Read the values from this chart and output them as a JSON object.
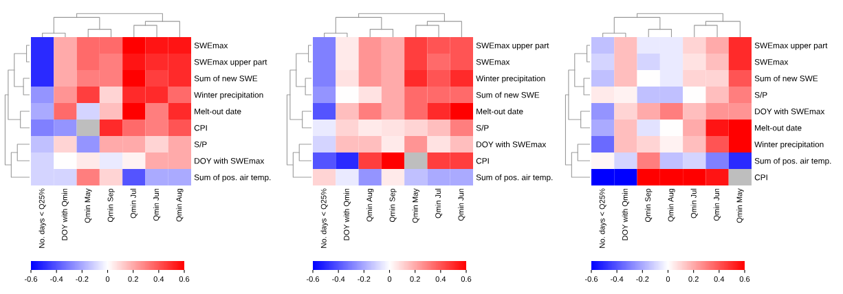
{
  "chart_data": [
    {
      "type": "heatmap",
      "categories": [
        "No. days < Q25%",
        "DOY with Qmin",
        "Qmin May",
        "Qmin Sep",
        "Qmin Jul",
        "Qmin Jun",
        "Qmin Aug"
      ],
      "y_categories": [
        "SWEmax",
        "SWEmax upper part",
        "Sum of new SWE",
        "Winter precipitation",
        "Melt-out date",
        "CPI",
        "S/P",
        "DOY with SWEmax",
        "Sum of pos. air temp."
      ],
      "cells": [
        [
          -0.5,
          0.2,
          0.35,
          0.35,
          0.6,
          0.55,
          0.55
        ],
        [
          -0.5,
          0.2,
          0.35,
          0.3,
          0.55,
          0.5,
          0.5
        ],
        [
          -0.5,
          0.2,
          0.3,
          0.3,
          0.6,
          0.45,
          0.5
        ],
        [
          -0.25,
          0.25,
          0.45,
          0.1,
          0.5,
          0.5,
          0.35
        ],
        [
          -0.2,
          0.35,
          -0.1,
          0.15,
          0.6,
          0.3,
          0.5
        ],
        [
          -0.3,
          -0.25,
          null,
          0.5,
          0.35,
          0.3,
          0.4
        ],
        [
          -0.15,
          0.1,
          -0.25,
          0.2,
          0.2,
          0.1,
          0.2
        ],
        [
          -0.1,
          0.0,
          0.05,
          -0.05,
          0.03,
          0.2,
          0.2
        ],
        [
          -0.1,
          -0.1,
          0.3,
          0.1,
          -0.4,
          -0.2,
          -0.2
        ]
      ],
      "clim": [
        -0.6,
        0.6
      ],
      "cticks": [
        -0.6,
        -0.4,
        -0.2,
        0,
        0.2,
        0.4,
        0.6
      ]
    },
    {
      "type": "heatmap",
      "categories": [
        "No. days < Q25%",
        "DOY with Qmin",
        "Qmin Aug",
        "Qmin Sep",
        "Qmin May",
        "Qmin Jul",
        "Qmin Jun"
      ],
      "y_categories": [
        "SWEmax upper part",
        "SWEmax",
        "Winter precipitation",
        "Sum of new SWE",
        "Melt-out date",
        "S/P",
        "DOY with SWEmax",
        "CPI",
        "Sum of pos. air temp."
      ],
      "cells": [
        [
          -0.3,
          0.05,
          0.25,
          0.2,
          0.45,
          0.4,
          0.4
        ],
        [
          -0.3,
          0.05,
          0.25,
          0.2,
          0.45,
          0.35,
          0.4
        ],
        [
          -0.3,
          0.07,
          0.25,
          0.2,
          0.5,
          0.4,
          0.5
        ],
        [
          -0.25,
          0.0,
          0.07,
          0.2,
          0.35,
          0.35,
          0.35
        ],
        [
          -0.4,
          0.15,
          0.3,
          0.2,
          0.35,
          0.5,
          0.6
        ],
        [
          -0.05,
          0.1,
          0.05,
          0.07,
          0.1,
          0.15,
          0.3
        ],
        [
          -0.1,
          0.15,
          0.15,
          0.05,
          0.25,
          0.07,
          0.15
        ],
        [
          -0.4,
          -0.5,
          0.45,
          0.6,
          null,
          0.45,
          0.45
        ],
        [
          0.1,
          -0.05,
          -0.25,
          0.05,
          -0.15,
          -0.2,
          -0.2
        ]
      ],
      "clim": [
        -0.6,
        0.6
      ],
      "cticks": [
        -0.6,
        -0.4,
        -0.2,
        0,
        0.2,
        0.4,
        0.6
      ]
    },
    {
      "type": "heatmap",
      "categories": [
        "No. days < Q25%",
        "DOY with Qmin",
        "Qmin Sep",
        "Qmin Aug",
        "Qmin Jul",
        "Qmin Jun",
        "Qmin May"
      ],
      "y_categories": [
        "SWEmax upper part",
        "SWEmax",
        "Sum of new SWE",
        "S/P",
        "DOY with SWEmax",
        "Melt-out date",
        "Winter precipitation",
        "Sum of pos. air temp.",
        "CPI"
      ],
      "cells": [
        [
          -0.15,
          0.15,
          -0.05,
          -0.05,
          0.1,
          0.2,
          0.5
        ],
        [
          -0.1,
          0.15,
          -0.1,
          -0.05,
          0.07,
          0.15,
          0.5
        ],
        [
          -0.15,
          0.15,
          0.0,
          -0.05,
          0.1,
          0.1,
          0.4
        ],
        [
          0.05,
          0.03,
          -0.15,
          -0.15,
          0.0,
          0.15,
          0.3
        ],
        [
          -0.25,
          0.1,
          0.2,
          0.3,
          0.15,
          0.25,
          0.25
        ],
        [
          -0.2,
          0.15,
          -0.07,
          0.0,
          0.2,
          0.55,
          0.6
        ],
        [
          -0.35,
          0.15,
          0.1,
          0.03,
          0.15,
          0.4,
          0.6
        ],
        [
          0.02,
          -0.1,
          0.3,
          -0.15,
          -0.1,
          -0.3,
          -0.5
        ],
        [
          -0.6,
          -0.6,
          0.6,
          0.6,
          0.6,
          0.55,
          null
        ]
      ],
      "clim": [
        -0.6,
        0.6
      ],
      "cticks": [
        -0.6,
        -0.4,
        -0.2,
        0,
        0.2,
        0.4,
        0.6
      ]
    }
  ]
}
